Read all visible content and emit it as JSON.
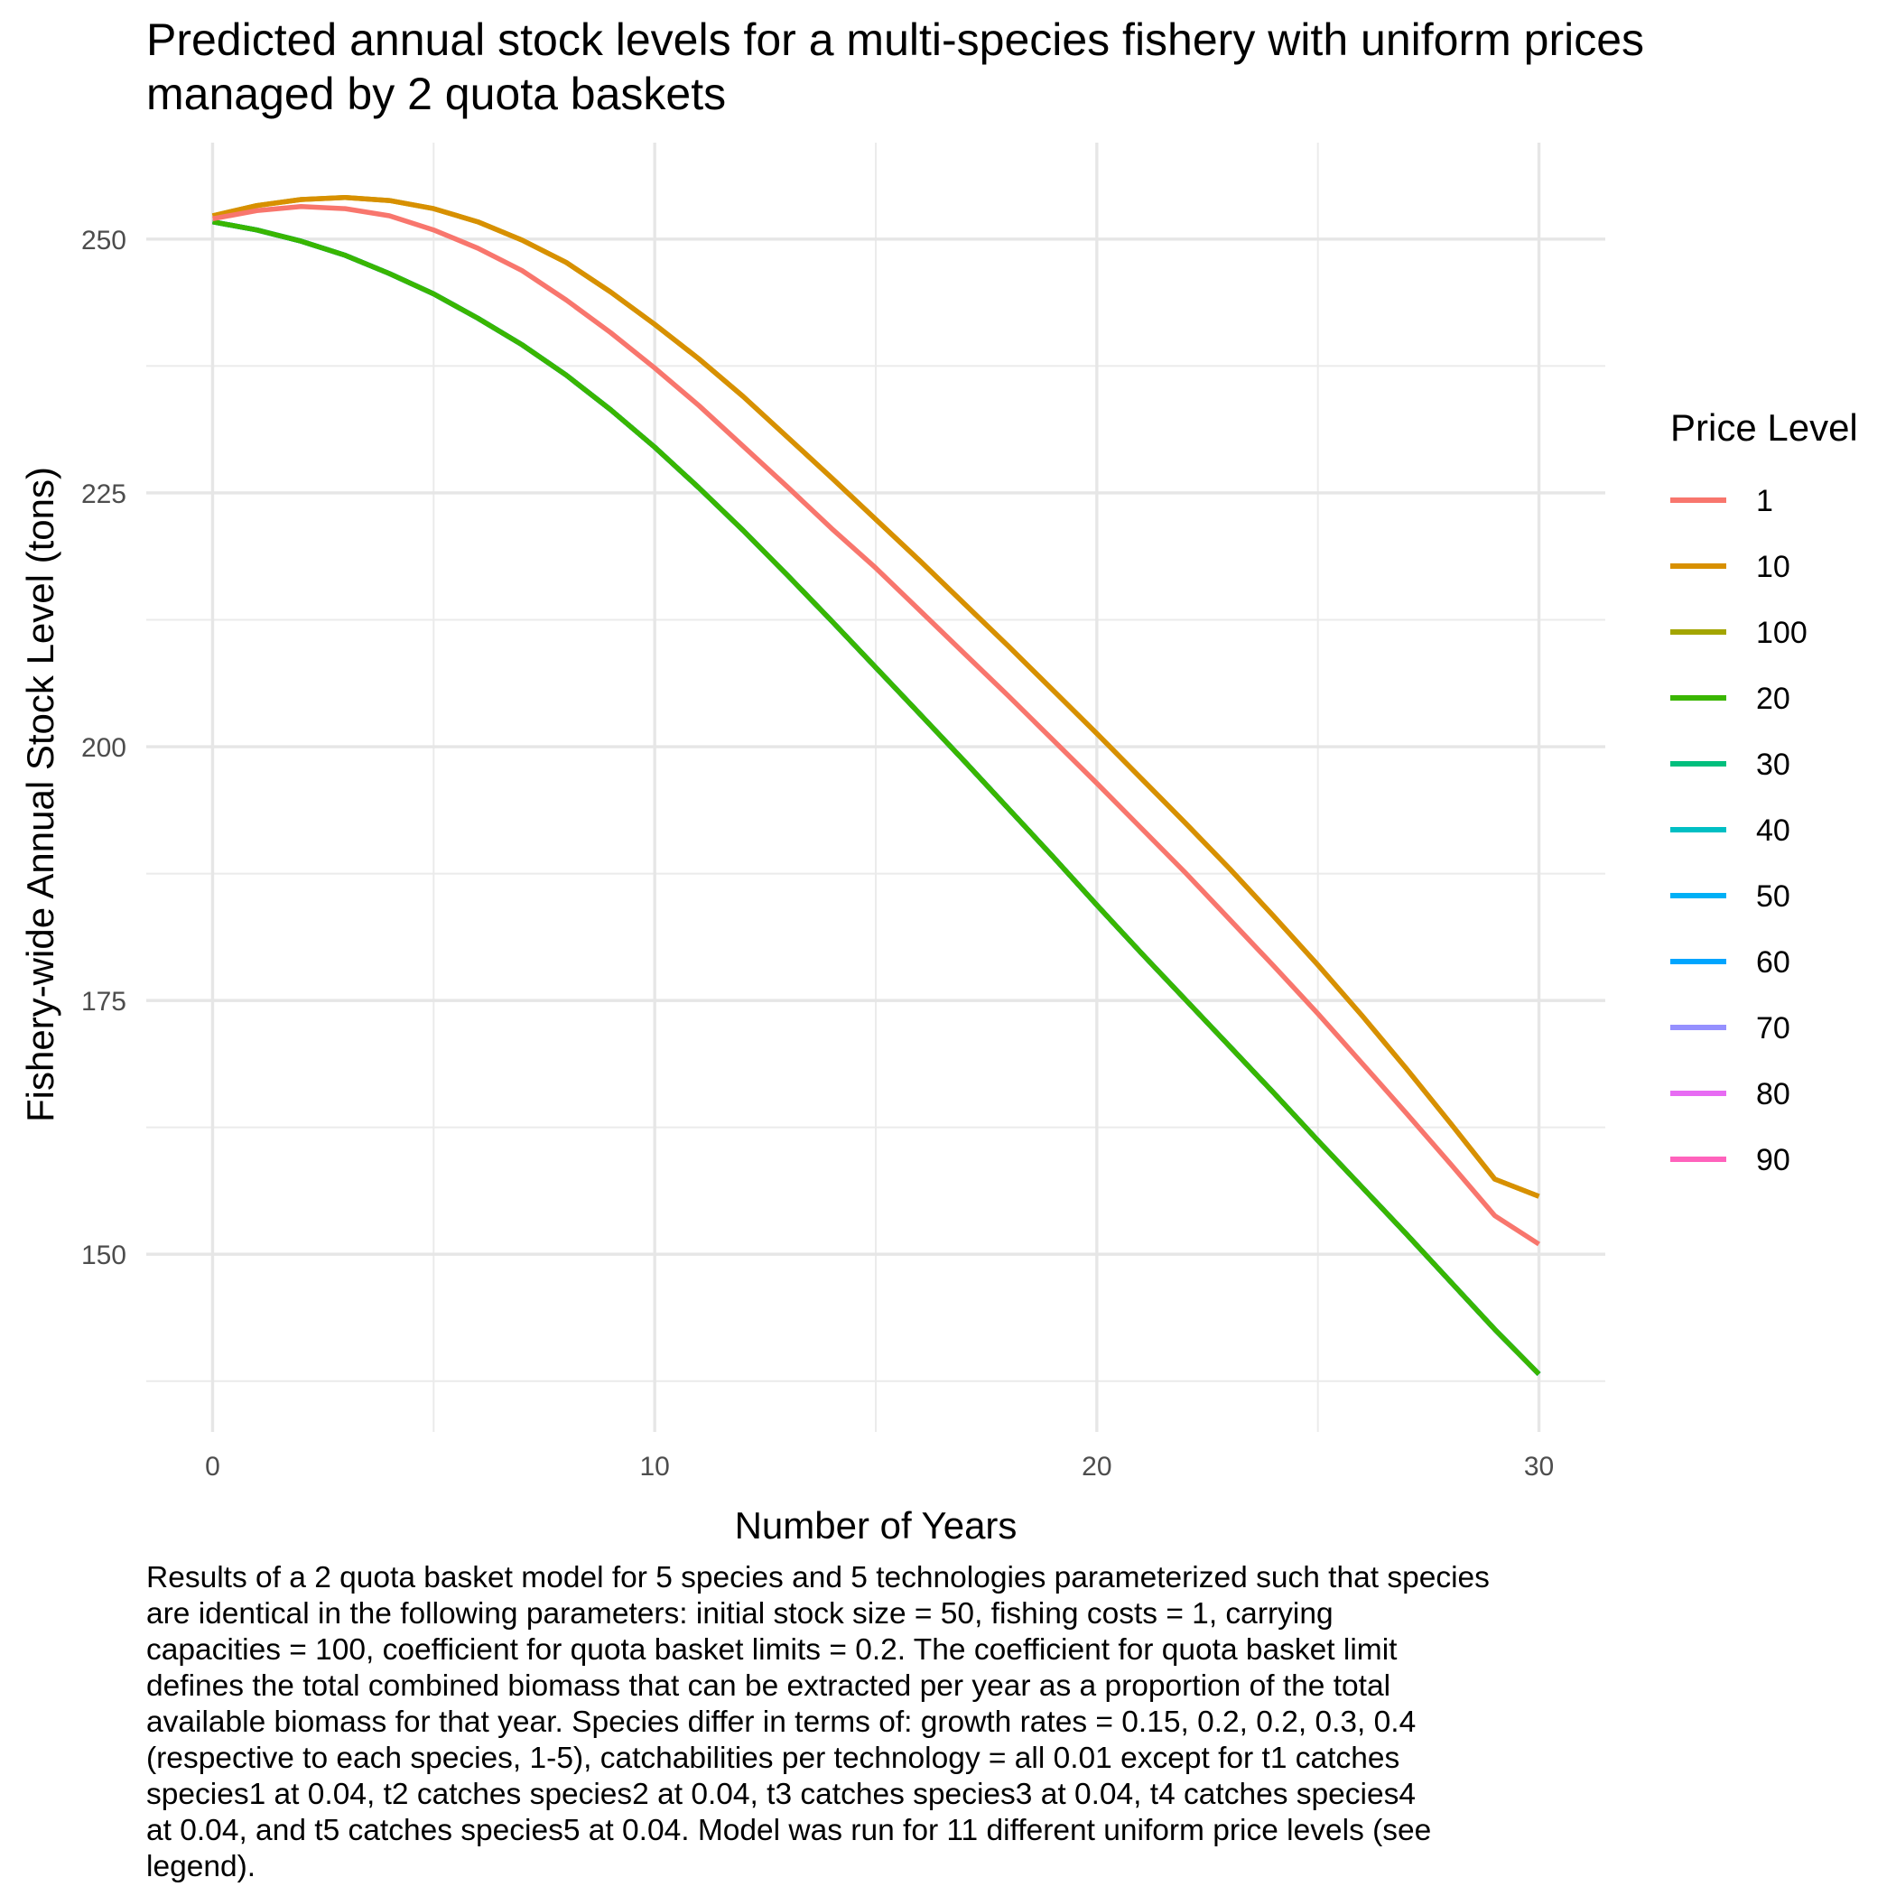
{
  "chart_data": {
    "type": "line",
    "title_lines": [
      "Predicted annual stock levels for a multi-species fishery with uniform prices",
      "managed by 2 quota baskets"
    ],
    "xlabel": "Number of Years",
    "ylabel": "Fishery-wide Annual Stock Level (tons)",
    "xlim": [
      -1.5,
      31.5
    ],
    "ylim": [
      132.5,
      259.5
    ],
    "x_ticks": [
      0,
      10,
      20,
      30
    ],
    "y_ticks": [
      150,
      175,
      200,
      225,
      250
    ],
    "grid": true,
    "legend_placement": "right",
    "legend_title": "Price Level",
    "x": [
      0,
      1,
      2,
      3,
      4,
      5,
      6,
      7,
      8,
      9,
      10,
      11,
      12,
      13,
      14,
      15,
      16,
      17,
      18,
      19,
      20,
      21,
      22,
      23,
      24,
      25,
      26,
      27,
      28,
      29,
      30
    ],
    "series": [
      {
        "name": "1",
        "color": "#F8766D",
        "values": [
          252,
          252.8,
          253.2,
          253.0,
          252.3,
          250.9,
          249.1,
          246.9,
          244.0,
          240.8,
          237.3,
          233.6,
          229.6,
          225.6,
          221.5,
          217.6,
          213.4,
          209.2,
          205.0,
          200.7,
          196.4,
          192.0,
          187.6,
          183.0,
          178.4,
          173.7,
          168.8,
          163.9,
          158.9,
          153.8,
          151.0
        ]
      },
      {
        "name": "10",
        "color": "#D89000",
        "values": [
          252.3,
          253.3,
          253.9,
          254.1,
          253.8,
          253.0,
          251.7,
          249.9,
          247.7,
          244.8,
          241.6,
          238.2,
          234.5,
          230.5,
          226.5,
          222.4,
          218.3,
          214.1,
          209.9,
          205.6,
          201.3,
          196.9,
          192.5,
          188.0,
          183.3,
          178.5,
          173.5,
          168.3,
          162.9,
          157.4,
          155.7
        ]
      },
      {
        "name": "100",
        "color": "#A3A500",
        "values": [
          252.3,
          253.3,
          253.9,
          254.1,
          253.8,
          253.0,
          251.7,
          249.9,
          247.7,
          244.8,
          241.6,
          238.2,
          234.5,
          230.5,
          226.5,
          222.4,
          218.3,
          214.1,
          209.9,
          205.6,
          201.3,
          196.9,
          192.5,
          188.0,
          183.3,
          178.5,
          173.5,
          168.3,
          162.9,
          157.4,
          155.7
        ]
      },
      {
        "name": "20",
        "color": "#39B600",
        "values": [
          251.7,
          250.9,
          249.8,
          248.4,
          246.6,
          244.6,
          242.2,
          239.6,
          236.6,
          233.2,
          229.5,
          225.5,
          221.3,
          216.9,
          212.4,
          207.8,
          203.2,
          198.6,
          193.9,
          189.2,
          184.4,
          179.7,
          175.1,
          170.5,
          165.9,
          161.2,
          156.6,
          152.0,
          147.3,
          142.6,
          138.2
        ]
      },
      {
        "name": "30",
        "color": "#00BF7D",
        "values": [
          251.7,
          250.9,
          249.8,
          248.4,
          246.6,
          244.6,
          242.2,
          239.6,
          236.6,
          233.2,
          229.5,
          225.5,
          221.3,
          216.9,
          212.4,
          207.8,
          203.2,
          198.6,
          193.9,
          189.2,
          184.4,
          179.7,
          175.1,
          170.5,
          165.9,
          161.2,
          156.6,
          152.0,
          147.3,
          142.6,
          138.2
        ]
      },
      {
        "name": "40",
        "color": "#00BFC4",
        "values": [
          251.7,
          250.9,
          249.8,
          248.4,
          246.6,
          244.6,
          242.2,
          239.6,
          236.6,
          233.2,
          229.5,
          225.5,
          221.3,
          216.9,
          212.4,
          207.8,
          203.2,
          198.6,
          193.9,
          189.2,
          184.4,
          179.7,
          175.1,
          170.5,
          165.9,
          161.2,
          156.6,
          152.0,
          147.3,
          142.6,
          138.2
        ]
      },
      {
        "name": "50",
        "color": "#00B0F6",
        "values": [
          251.7,
          250.9,
          249.8,
          248.4,
          246.6,
          244.6,
          242.2,
          239.6,
          236.6,
          233.2,
          229.5,
          225.5,
          221.3,
          216.9,
          212.4,
          207.8,
          203.2,
          198.6,
          193.9,
          189.2,
          184.4,
          179.7,
          175.1,
          170.5,
          165.9,
          161.2,
          156.6,
          152.0,
          147.3,
          142.6,
          138.2
        ]
      },
      {
        "name": "60",
        "color": "#00A5FF",
        "values": [
          251.7,
          250.9,
          249.8,
          248.4,
          246.6,
          244.6,
          242.2,
          239.6,
          236.6,
          233.2,
          229.5,
          225.5,
          221.3,
          216.9,
          212.4,
          207.8,
          203.2,
          198.6,
          193.9,
          189.2,
          184.4,
          179.7,
          175.1,
          170.5,
          165.9,
          161.2,
          156.6,
          152.0,
          147.3,
          142.6,
          138.2
        ]
      },
      {
        "name": "70",
        "color": "#9590FF",
        "values": [
          251.7,
          250.9,
          249.8,
          248.4,
          246.6,
          244.6,
          242.2,
          239.6,
          236.6,
          233.2,
          229.5,
          225.5,
          221.3,
          216.9,
          212.4,
          207.8,
          203.2,
          198.6,
          193.9,
          189.2,
          184.4,
          179.7,
          175.1,
          170.5,
          165.9,
          161.2,
          156.6,
          152.0,
          147.3,
          142.6,
          138.2
        ]
      },
      {
        "name": "80",
        "color": "#E76BF3",
        "values": [
          251.7,
          250.9,
          249.8,
          248.4,
          246.6,
          244.6,
          242.2,
          239.6,
          236.6,
          233.2,
          229.5,
          225.5,
          221.3,
          216.9,
          212.4,
          207.8,
          203.2,
          198.6,
          193.9,
          189.2,
          184.4,
          179.7,
          175.1,
          170.5,
          165.9,
          161.2,
          156.6,
          152.0,
          147.3,
          142.6,
          138.2
        ]
      },
      {
        "name": "90",
        "color": "#FF62BC",
        "values": [
          251.7,
          250.9,
          249.8,
          248.4,
          246.6,
          244.6,
          242.2,
          239.6,
          236.6,
          233.2,
          229.5,
          225.5,
          221.3,
          216.9,
          212.4,
          207.8,
          203.2,
          198.6,
          193.9,
          189.2,
          184.4,
          179.7,
          175.1,
          170.5,
          165.9,
          161.2,
          156.6,
          152.0,
          147.3,
          142.6,
          138.2
        ]
      }
    ],
    "caption_lines": [
      "Results of a 2 quota basket model for 5 species and 5 technologies parameterized such that species",
      "are identical in the following parameters: initial stock size = 50, fishing costs = 1, carrying",
      "capacities = 100, coefficient for quota basket limits = 0.2. The coefficient for quota basket limit",
      "defines the total combined biomass that can be extracted per year as a proportion of the total",
      "available biomass for that year. Species differ in terms of: growth rates = 0.15, 0.2, 0.2, 0.3, 0.4",
      "(respective to each species, 1-5), catchabilities per technology = all 0.01 except for t1 catches",
      "species1 at 0.04, t2 catches species2 at 0.04, t3 catches species3 at 0.04, t4 catches species4",
      "at 0.04, and t5 catches species5 at 0.04. Model was run for 11 different uniform price levels (see",
      "legend)."
    ]
  }
}
